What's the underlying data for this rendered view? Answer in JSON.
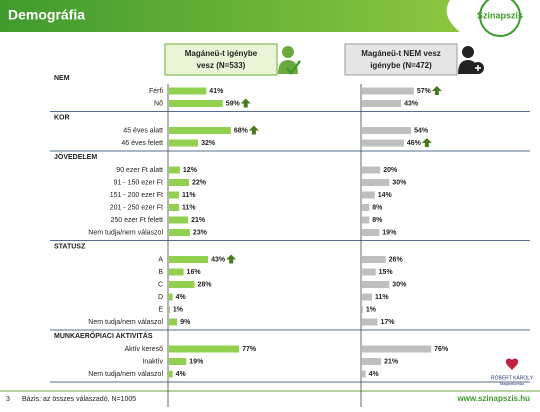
{
  "chart_data": {
    "type": "bar",
    "title": "Demográfia",
    "series": [
      {
        "name_lines": [
          "Magáneü-t igénybe",
          "vesz (N=533)"
        ],
        "color": "#92d050"
      },
      {
        "name_lines": [
          "Magáneü-t NEM vesz",
          "igénybe (N=472)"
        ],
        "color": "#bfbfbf"
      }
    ],
    "sections": [
      {
        "name": "NEM",
        "categories": [
          "Férfi",
          "Nő"
        ],
        "values": [
          [
            41,
            59
          ],
          [
            57,
            43
          ]
        ],
        "value_labels": [
          [
            "41%",
            "59%"
          ],
          [
            "57%",
            "43%"
          ]
        ],
        "arrows": [
          [
            false,
            true
          ],
          [
            true,
            false
          ]
        ]
      },
      {
        "name": "KOR",
        "categories": [
          "45 éves alatt",
          "46 éves felett"
        ],
        "values": [
          [
            68,
            32
          ],
          [
            54,
            46
          ]
        ],
        "value_labels": [
          [
            "68%",
            "32%"
          ],
          [
            "54%",
            "46%"
          ]
        ],
        "arrows": [
          [
            true,
            false
          ],
          [
            false,
            true
          ]
        ]
      },
      {
        "name": "JÖVEDELEM",
        "categories": [
          "90 ezer Ft alatt",
          "91 - 150 ezer Ft",
          "151 - 200 ezer Ft",
          "201 - 250 ezer Ft",
          "250 ezer Ft felett",
          "Nem tudja/nem válaszol"
        ],
        "values": [
          [
            12,
            22,
            11,
            11,
            21,
            23
          ],
          [
            20,
            30,
            14,
            8,
            8,
            19
          ]
        ],
        "value_labels": [
          [
            "12%",
            "22%",
            "11%",
            "11%",
            "21%",
            "23%"
          ],
          [
            "20%",
            "30%",
            "14%",
            "8%",
            "8%",
            "19%"
          ]
        ]
      },
      {
        "name": "STATUSZ",
        "categories": [
          "A",
          "B",
          "C",
          "D",
          "E",
          "Nem tudja/nem válaszol"
        ],
        "values": [
          [
            43,
            16,
            28,
            4,
            1,
            9
          ],
          [
            26,
            15,
            30,
            11,
            1,
            17
          ]
        ],
        "value_labels": [
          [
            "43%",
            "16%",
            "28%",
            "4%",
            "1%",
            "9%"
          ],
          [
            "26%",
            "15%",
            "30%",
            "11%",
            "1%",
            "17%"
          ]
        ],
        "arrows": [
          [
            true,
            false,
            false,
            false,
            false,
            false
          ],
          [
            false,
            false,
            false,
            false,
            false,
            false
          ]
        ]
      },
      {
        "name": "MUNKAERŐPIACI AKTIVITÁS",
        "categories": [
          "Aktív kereső",
          "Inaktív",
          "Nem tudja/nem válaszol"
        ],
        "values": [
          [
            77,
            19,
            4
          ],
          [
            76,
            21,
            4
          ]
        ],
        "value_labels": [
          [
            "77%",
            "19%",
            "4%"
          ],
          [
            "76%",
            "21%",
            "4%"
          ]
        ]
      }
    ]
  },
  "logo": "Szinapszis",
  "hospital": [
    "RÓBERT KÁROLY",
    "Magánkórház"
  ],
  "footer": {
    "page": 3,
    "note": "Bázis: az összes válaszadó, N=1005",
    "url": "www.szinapszis.hu"
  }
}
